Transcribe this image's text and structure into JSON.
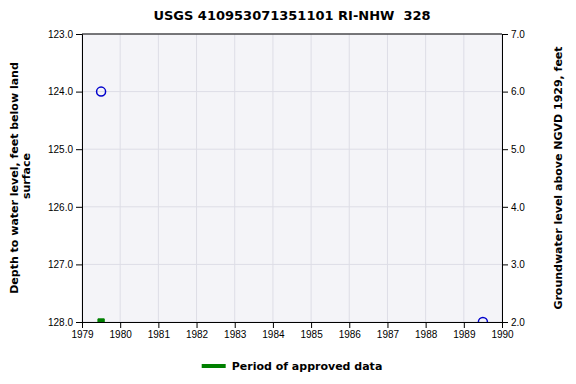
{
  "chart_data": {
    "type": "scatter",
    "title": "USGS 410953071351101 RI-NHW  328",
    "ylabel": "Depth to water level, feet below land\n surface",
    "y2label": "Groundwater level above NGVD 1929, feet",
    "xlim": [
      1979,
      1990
    ],
    "xticks": [
      1979,
      1980,
      1981,
      1982,
      1983,
      1984,
      1985,
      1986,
      1987,
      1988,
      1989,
      1990
    ],
    "ylim": [
      128.0,
      123.0
    ],
    "yticks": [
      {
        "value": 123,
        "label": "123.0"
      },
      {
        "value": 124,
        "label": "124.0"
      },
      {
        "value": 125,
        "label": "125.0"
      },
      {
        "value": 126,
        "label": "126.0"
      },
      {
        "value": 127,
        "label": "127.0"
      },
      {
        "value": 128,
        "label": "128.0"
      }
    ],
    "y2lim": [
      2.0,
      7.0
    ],
    "y2ticks": [
      {
        "value": 7,
        "label": "7.0"
      },
      {
        "value": 6,
        "label": "6.0"
      },
      {
        "value": 5,
        "label": "5.0"
      },
      {
        "value": 4,
        "label": "4.0"
      },
      {
        "value": 3,
        "label": "3.0"
      },
      {
        "value": 2,
        "label": "2.0"
      }
    ],
    "grid": true,
    "legend": "bottom",
    "series": [
      {
        "color": "#0000cc",
        "marker": "circle",
        "x": [
          1979.5,
          1989.5
        ],
        "values": [
          124.0,
          128.0
        ]
      },
      {
        "name": "Period of approved data",
        "color": "#008000",
        "marker": "square",
        "x": [
          1979.5
        ],
        "values": [
          128.0
        ]
      }
    ]
  }
}
